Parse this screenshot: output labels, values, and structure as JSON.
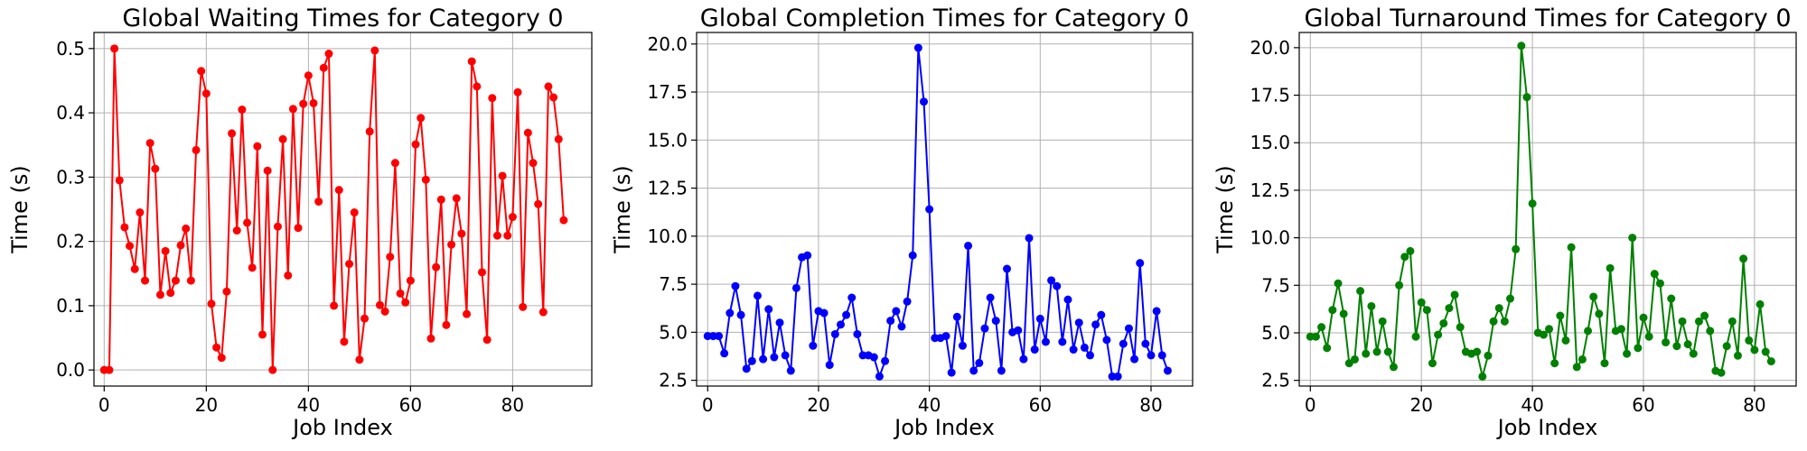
{
  "chart_data": [
    {
      "type": "line",
      "title": "Global Waiting Times for Category 0",
      "xlabel": "Job Index",
      "ylabel": "Time (s)",
      "xlim": [
        -2,
        95.5
      ],
      "ylim": [
        -0.025,
        0.525
      ],
      "xticks": [
        0,
        20,
        40,
        60,
        80
      ],
      "yticks": [
        0.0,
        0.1,
        0.2,
        0.3,
        0.4,
        0.5
      ],
      "ytick_labels": [
        "0.0",
        "0.1",
        "0.2",
        "0.3",
        "0.4",
        "0.5"
      ],
      "grid": true,
      "color": "#ff0000",
      "series": [
        {
          "values": [
            0.0,
            0.0,
            0.5,
            0.295,
            0.222,
            0.193,
            0.157,
            0.245,
            0.139,
            0.353,
            0.313,
            0.117,
            0.185,
            0.12,
            0.139,
            0.194,
            0.22,
            0.139,
            0.342,
            0.465,
            0.43,
            0.103,
            0.035,
            0.019,
            0.122,
            0.368,
            0.217,
            0.405,
            0.229,
            0.159,
            0.348,
            0.055,
            0.31,
            0.0,
            0.223,
            0.359,
            0.147,
            0.406,
            0.221,
            0.414,
            0.458,
            0.415,
            0.262,
            0.47,
            0.492,
            0.1,
            0.28,
            0.044,
            0.165,
            0.245,
            0.016,
            0.08,
            0.371,
            0.497,
            0.101,
            0.091,
            0.176,
            0.322,
            0.119,
            0.105,
            0.139,
            0.351,
            0.392,
            0.296,
            0.049,
            0.16,
            0.265,
            0.07,
            0.195,
            0.267,
            0.212,
            0.087,
            0.48,
            0.441,
            0.152,
            0.047,
            0.423,
            0.209,
            0.302,
            0.209,
            0.238,
            0.432,
            0.098,
            0.369,
            0.322,
            0.258,
            0.09,
            0.441,
            0.424,
            0.359,
            0.233
          ]
        }
      ]
    },
    {
      "type": "line",
      "title": "Global Completion Times for Category 0",
      "xlabel": "Job Index",
      "ylabel": "Time (s)",
      "xlim": [
        -2,
        87.5
      ],
      "ylim": [
        2.2,
        20.6
      ],
      "xticks": [
        0,
        20,
        40,
        60,
        80
      ],
      "yticks": [
        2.5,
        5.0,
        7.5,
        10.0,
        12.5,
        15.0,
        17.5,
        20.0
      ],
      "ytick_labels": [
        "2.5",
        "5.0",
        "7.5",
        "10.0",
        "12.5",
        "15.0",
        "17.5",
        "20.0"
      ],
      "grid": true,
      "color": "#0000ff",
      "series": [
        {
          "values": [
            4.8,
            4.8,
            4.8,
            3.9,
            6.0,
            7.4,
            5.9,
            3.1,
            3.5,
            6.9,
            3.6,
            6.2,
            3.7,
            5.5,
            3.8,
            3.0,
            7.3,
            8.9,
            9.0,
            4.3,
            6.1,
            6.0,
            3.3,
            4.9,
            5.4,
            5.9,
            6.8,
            4.9,
            3.8,
            3.8,
            3.7,
            2.7,
            3.5,
            5.6,
            6.1,
            5.3,
            6.6,
            9.0,
            19.8,
            17.0,
            11.4,
            4.7,
            4.7,
            4.8,
            2.9,
            5.8,
            4.3,
            9.5,
            3.0,
            3.4,
            5.2,
            6.8,
            5.6,
            3.0,
            8.3,
            5.0,
            5.1,
            3.6,
            9.9,
            4.1,
            5.7,
            4.5,
            7.7,
            7.4,
            4.5,
            6.7,
            4.1,
            5.5,
            4.2,
            3.8,
            5.4,
            5.9,
            4.6,
            2.7,
            2.7,
            4.4,
            5.2,
            3.6,
            8.6,
            4.4,
            3.8,
            6.1,
            3.8,
            3.0
          ]
        }
      ]
    },
    {
      "type": "line",
      "title": "Global Turnaround Times for Category 0",
      "xlabel": "Job Index",
      "ylabel": "Time (s)",
      "xlim": [
        -2,
        87.5
      ],
      "ylim": [
        2.2,
        20.8
      ],
      "xticks": [
        0,
        20,
        40,
        60,
        80
      ],
      "yticks": [
        2.5,
        5.0,
        7.5,
        10.0,
        12.5,
        15.0,
        17.5,
        20.0
      ],
      "ytick_labels": [
        "2.5",
        "5.0",
        "7.5",
        "10.0",
        "12.5",
        "15.0",
        "17.5",
        "20.0"
      ],
      "grid": true,
      "color": "#008000",
      "series": [
        {
          "values": [
            4.8,
            4.8,
            5.3,
            4.2,
            6.2,
            7.6,
            6.0,
            3.4,
            3.6,
            7.2,
            3.9,
            6.4,
            4.0,
            5.6,
            4.0,
            3.2,
            7.5,
            9.0,
            9.3,
            4.8,
            6.6,
            6.2,
            3.4,
            4.9,
            5.5,
            6.3,
            7.0,
            5.3,
            4.0,
            3.9,
            4.0,
            2.7,
            3.8,
            5.6,
            6.3,
            5.6,
            6.8,
            9.4,
            20.1,
            17.4,
            11.8,
            5.0,
            4.9,
            5.2,
            3.4,
            5.9,
            4.6,
            9.5,
            3.2,
            3.6,
            5.1,
            6.9,
            6.0,
            3.4,
            8.4,
            5.1,
            5.2,
            3.9,
            10.0,
            4.2,
            5.8,
            4.8,
            8.1,
            7.6,
            4.5,
            6.8,
            4.3,
            5.6,
            4.4,
            3.9,
            5.6,
            5.9,
            5.1,
            3.0,
            2.9,
            4.3,
            5.6,
            3.8,
            8.9,
            4.6,
            4.1,
            6.5,
            4.0,
            3.5
          ]
        }
      ]
    }
  ]
}
